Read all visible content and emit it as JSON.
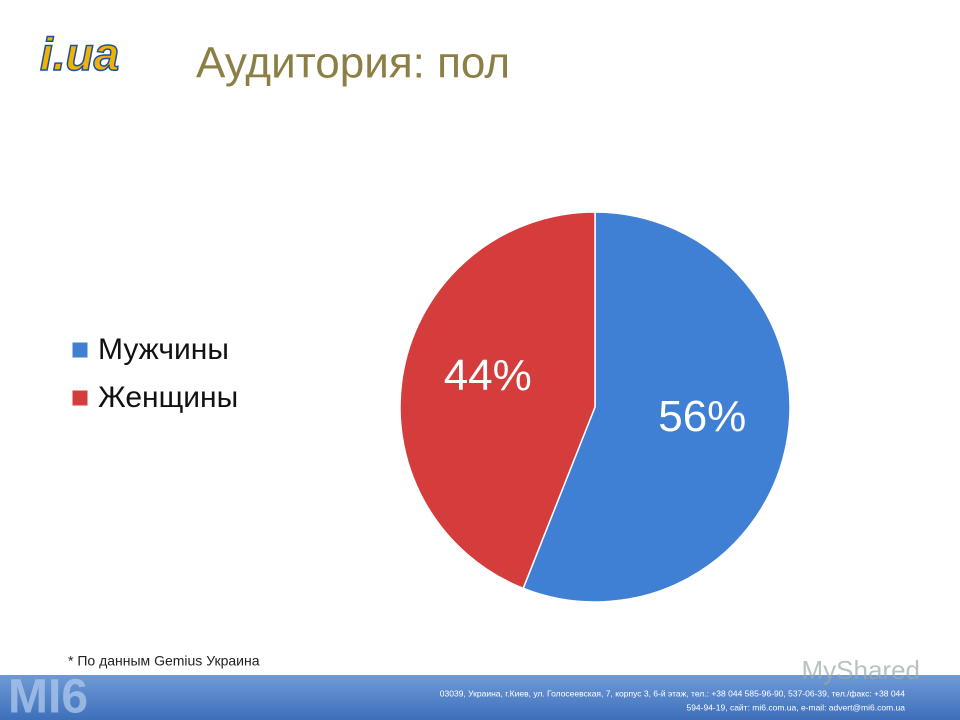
{
  "logo": "i.ua",
  "chart_data": {
    "type": "pie",
    "title": "Аудитория: пол",
    "categories": [
      "Мужчины",
      "Женщины"
    ],
    "values": [
      56,
      44
    ],
    "value_labels": [
      "56%",
      "44%"
    ],
    "colors": [
      "#3f7fd4",
      "#d43d3b"
    ],
    "legend": "left"
  },
  "footnote": "* По данным Gemius Украина",
  "footer": {
    "brand": "MI6",
    "lines": [
      "03039, Украина, г.Киев, ул. Голосеевская, 7, корпус 3, 6-й этаж, тел.: +38 044 585-96-90, 537-06-39, тел./факс: +38 044",
      "594-94-19, сайт: mi6.com.ua, e-mail: advert@mi6.com.ua"
    ],
    "watermark": "MyShared"
  }
}
